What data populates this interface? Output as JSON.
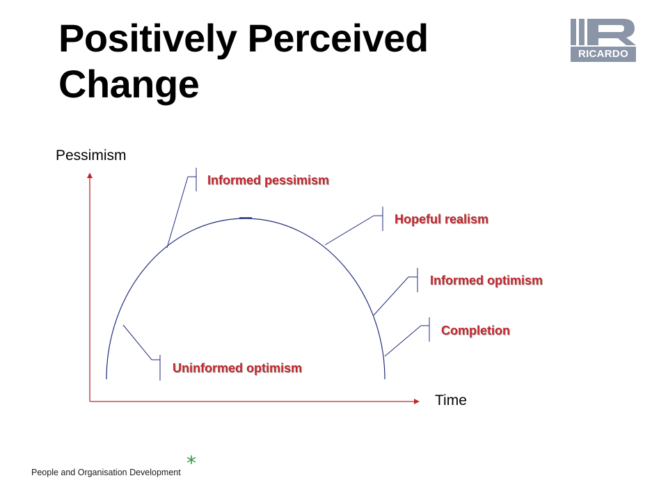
{
  "slide": {
    "title_line1": "Positively Perceived",
    "title_line2": "Change"
  },
  "logo": {
    "text": "RICARDO"
  },
  "diagram": {
    "y_axis_label": "Pessimism",
    "x_axis_label": "Time",
    "stages": [
      {
        "label": "Uninformed optimism"
      },
      {
        "label": "Informed pessimism"
      },
      {
        "label": "Hopeful realism"
      },
      {
        "label": "Informed optimism"
      },
      {
        "label": "Completion"
      }
    ]
  },
  "colors": {
    "axis": "#c0272d",
    "curve": "#1f2a7a",
    "stage_text": "#c0272d",
    "footer_star": "#2e9a3a"
  },
  "footer": {
    "text": "People and Organisation Development",
    "star": "*"
  }
}
